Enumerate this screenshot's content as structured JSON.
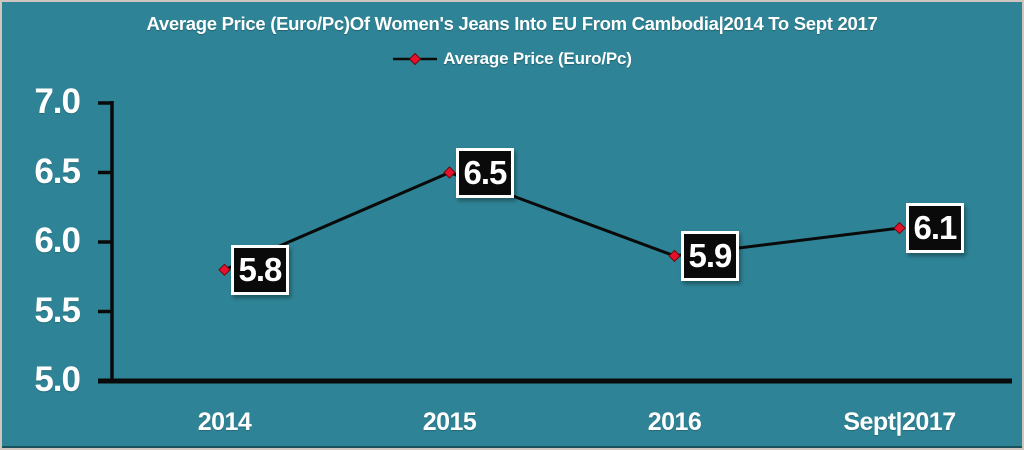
{
  "frame": {
    "background": "#2E8496",
    "border_color": "#CFC6BF"
  },
  "header": {
    "title": "Average Price (Euro/Pc)Of Women's Jeans Into EU From Cambodia|2014 To Sept 2017"
  },
  "legend": {
    "label": "Average Price (Euro/Pc)",
    "marker_icon": "red-diamond-on-black-line"
  },
  "chart_data": {
    "type": "line",
    "title": "Average Price (Euro/Pc)Of Women's Jeans Into EU From Cambodia|2014 To Sept 2017",
    "categories": [
      "2014",
      "2015",
      "2016",
      "Sept|2017"
    ],
    "series": [
      {
        "name": "Average Price (Euro/Pc)",
        "values": [
          5.8,
          6.5,
          5.9,
          6.1
        ]
      }
    ],
    "xlabel": "",
    "ylabel": "",
    "ylim": [
      5.0,
      7.0
    ],
    "yticks": [
      5.0,
      5.5,
      6.0,
      6.5,
      7.0
    ],
    "grid": false,
    "legend_position": "top-center",
    "data_labels": true,
    "marker_shape": "diamond",
    "colors": {
      "background": "#2E8496",
      "axis": "#0A0A0A",
      "line": "#0A0A0A",
      "marker_fill": "#E8112D",
      "marker_edge": "#6E0808",
      "label_bg": "#0A0A0A",
      "label_text": "#FFFFFF",
      "label_border": "#FFFFFF",
      "text": "#FFFFFF"
    }
  }
}
